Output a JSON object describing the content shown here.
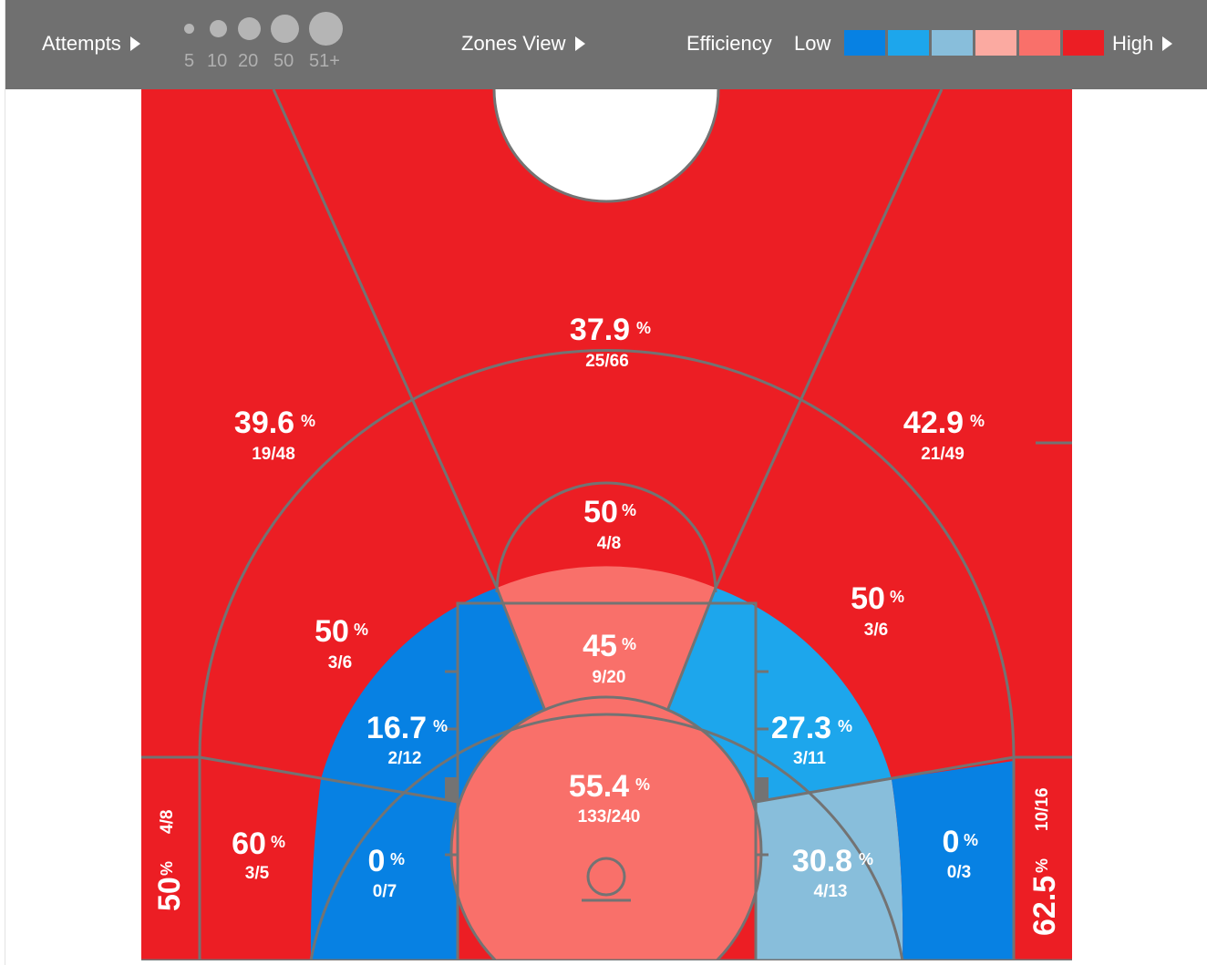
{
  "toolbar": {
    "attempts_label": "Attempts",
    "attempt_sizes": [
      "5",
      "10",
      "20",
      "50",
      "51+"
    ],
    "view_label": "Zones View",
    "efficiency_label": "Efficiency",
    "low_label": "Low",
    "high_label": "High",
    "efficiency_colors": [
      "#0781e3",
      "#1da6ec",
      "#88bedb",
      "#fbaaa1",
      "#f9706a",
      "#ec1e24"
    ]
  },
  "zones": {
    "top_center": {
      "pct": "37.9",
      "frac": "25/66"
    },
    "top_left": {
      "pct": "39.6",
      "frac": "19/48"
    },
    "top_right": {
      "pct": "42.9",
      "frac": "21/49"
    },
    "mid_top": {
      "pct": "50",
      "frac": "4/8"
    },
    "mid_left": {
      "pct": "50",
      "frac": "3/6"
    },
    "mid_right": {
      "pct": "50",
      "frac": "3/6"
    },
    "paint_top": {
      "pct": "45",
      "frac": "9/20"
    },
    "inner_left": {
      "pct": "16.7",
      "frac": "2/12"
    },
    "inner_right": {
      "pct": "27.3",
      "frac": "3/11"
    },
    "restricted": {
      "pct": "55.4",
      "frac": "133/240"
    },
    "base_left": {
      "pct": "60",
      "frac": "3/5"
    },
    "low_left": {
      "pct": "0",
      "frac": "0/7"
    },
    "low_right": {
      "pct": "30.8",
      "frac": "4/13"
    },
    "base_right": {
      "pct": "0",
      "frac": "0/3"
    },
    "corner_left": {
      "pct": "50",
      "frac": "4/8"
    },
    "corner_right": {
      "pct": "62.5",
      "frac": "10/16"
    },
    "percent_sign": "%"
  }
}
